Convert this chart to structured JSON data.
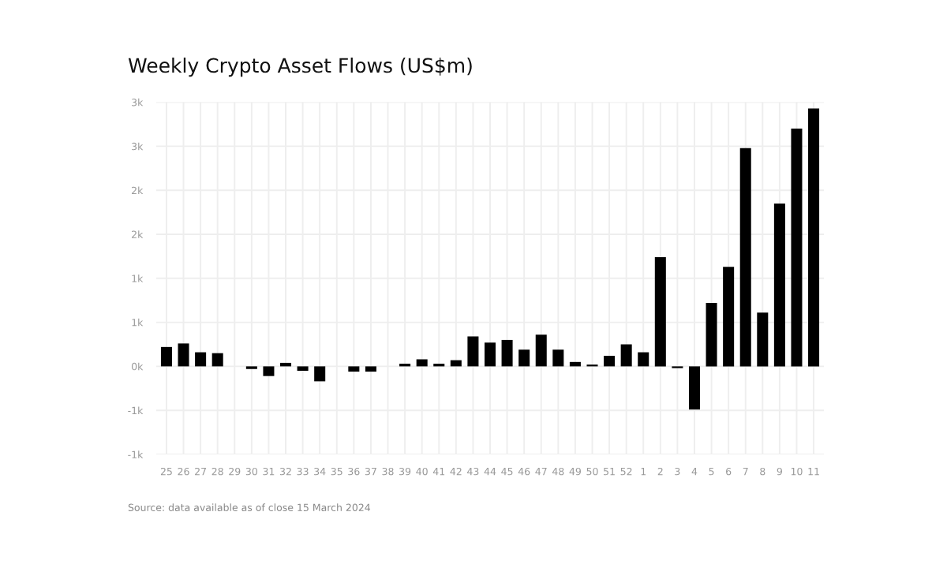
{
  "chart_data": {
    "type": "bar",
    "title": "Weekly Crypto Asset Flows (US$m)",
    "categories": [
      "25",
      "26",
      "27",
      "28",
      "29",
      "30",
      "31",
      "32",
      "33",
      "34",
      "35",
      "36",
      "37",
      "38",
      "39",
      "40",
      "41",
      "42",
      "43",
      "44",
      "45",
      "46",
      "47",
      "48",
      "49",
      "50",
      "51",
      "52",
      "1",
      "2",
      "3",
      "4",
      "5",
      "6",
      "7",
      "8",
      "9",
      "10",
      "11"
    ],
    "values": [
      220,
      260,
      160,
      150,
      0,
      -30,
      -110,
      40,
      -50,
      -170,
      0,
      -60,
      -60,
      0,
      30,
      80,
      30,
      70,
      340,
      270,
      300,
      190,
      360,
      190,
      50,
      20,
      120,
      250,
      160,
      1240,
      -20,
      -490,
      720,
      1130,
      2480,
      610,
      1850,
      2700,
      2930
    ],
    "color": "#000000",
    "ylim": [
      -1000,
      3000
    ],
    "yticks": [
      {
        "value": -1000,
        "label": "-1k"
      },
      {
        "value": -500,
        "label": "-1k"
      },
      {
        "value": 0,
        "label": "0k"
      },
      {
        "value": 500,
        "label": "1k"
      },
      {
        "value": 1000,
        "label": "1k"
      },
      {
        "value": 1500,
        "label": "2k"
      },
      {
        "value": 2000,
        "label": "2k"
      },
      {
        "value": 2500,
        "label": "3k"
      },
      {
        "value": 3000,
        "label": "3k"
      }
    ],
    "grid": true,
    "annotations": [
      "Source: data available as of close 15 March 2024"
    ]
  }
}
